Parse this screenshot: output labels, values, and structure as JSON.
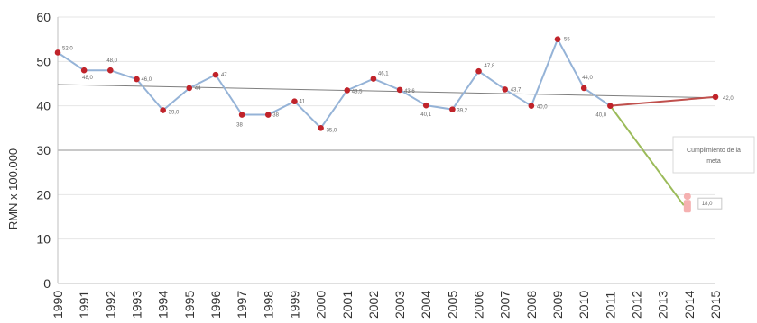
{
  "chart_data": {
    "type": "line",
    "ylabel": "RMN x 100.000",
    "ylim": [
      0,
      60
    ],
    "yticks": [
      0,
      10,
      20,
      30,
      40,
      50,
      60
    ],
    "grid": true,
    "categories": [
      "1990",
      "1991",
      "1992",
      "1993",
      "1994",
      "1995",
      "1996",
      "1997",
      "1998",
      "1999",
      "2000",
      "2001",
      "2002",
      "2003",
      "2004",
      "2005",
      "2006",
      "2007",
      "2008",
      "2009",
      "2010",
      "2011",
      "2012",
      "2013",
      "2014",
      "2015"
    ],
    "series": [
      {
        "values": [
          52.0,
          48.0,
          48.0,
          46.0,
          39.0,
          44.0,
          47.0,
          38.0,
          38.0,
          41.0,
          35.0,
          43.5,
          46.1,
          43.6,
          40.1,
          39.2,
          47.8,
          43.7,
          40.0,
          55.0,
          44.0,
          40.0,
          null,
          null,
          null,
          null
        ],
        "labels": [
          "52,0",
          "48,0",
          "48,0",
          "46,0",
          "39,0",
          "44",
          "47",
          "38",
          "38",
          "41",
          "35,0",
          "43,5",
          "46,1",
          "43,6",
          "40,1",
          "39,2",
          "47,8",
          "43,7",
          "40,0",
          "55",
          "44,0",
          "40,0",
          "",
          "",
          "",
          ""
        ],
        "color": "#95b3d7",
        "marker_color": "#c0232a"
      }
    ],
    "trend": {
      "from": {
        "x": "1990",
        "y": 44.8
      },
      "to": {
        "x": "2015",
        "y": 41.8
      },
      "color": "#7f7f7f"
    },
    "projection": {
      "from": {
        "x": "2011",
        "y": 40.0
      },
      "to": {
        "x": "2015",
        "y": 42.0
      },
      "label": "42,0",
      "color": "#c0504d"
    },
    "target_line": {
      "from": {
        "x": "2011",
        "y": 40.0
      },
      "to": {
        "x": "2014",
        "y": 18.0
      },
      "color": "#9bbb59"
    },
    "goal": {
      "x": "2014",
      "y": 18.0,
      "label": "18,0",
      "annotation": [
        "Cumplimiento de la",
        "meta"
      ]
    }
  }
}
